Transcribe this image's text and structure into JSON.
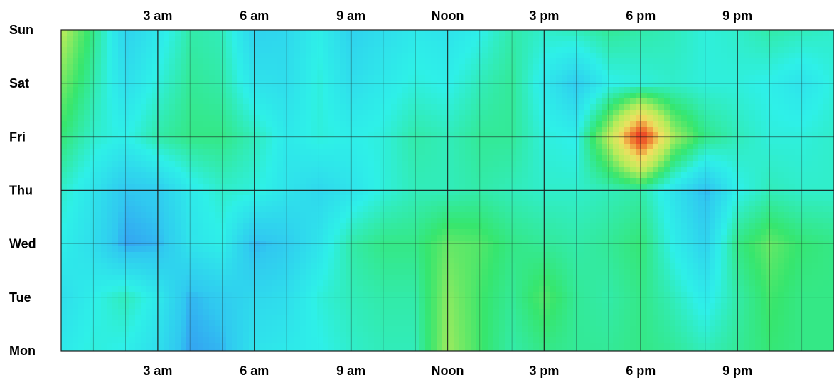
{
  "chart_data": {
    "type": "heatmap",
    "title": "",
    "xlabel": "",
    "ylabel": "",
    "x_tick_labels": [
      "3 am",
      "6 am",
      "9 am",
      "Noon",
      "3 pm",
      "6 pm",
      "9 pm"
    ],
    "x_tick_hours": [
      3,
      6,
      9,
      12,
      15,
      18,
      21
    ],
    "x_range_hours": [
      0,
      24
    ],
    "y_tick_labels": [
      "Sun",
      "Sat",
      "Fri",
      "Thu",
      "Wed",
      "Tue",
      "Mon"
    ],
    "x_axis_labels_position": "top and bottom",
    "grid": true,
    "colorscale": [
      "#3b4ff5",
      "#30c8f0",
      "#2ef0e8",
      "#36e66e",
      "#b8ec5a",
      "#f0e060",
      "#f07a30",
      "#e82a20"
    ],
    "value_scale": "relative 0-1",
    "rows_top_to_bottom": [
      "Sun",
      "Sat",
      "Fri",
      "Thu",
      "Wed",
      "Tue",
      "Mon"
    ],
    "hours": [
      0,
      1,
      2,
      3,
      4,
      5,
      6,
      7,
      8,
      9,
      10,
      11,
      12,
      13,
      14,
      15,
      16,
      17,
      18,
      19,
      20,
      21,
      22,
      23,
      24
    ],
    "values": [
      [
        0.58,
        0.4,
        0.18,
        0.25,
        0.36,
        0.34,
        0.18,
        0.2,
        0.28,
        0.18,
        0.22,
        0.26,
        0.24,
        0.28,
        0.36,
        0.32,
        0.34,
        0.38,
        0.36,
        0.34,
        0.3,
        0.32,
        0.36,
        0.34,
        0.32
      ],
      [
        0.5,
        0.36,
        0.22,
        0.3,
        0.38,
        0.36,
        0.24,
        0.22,
        0.3,
        0.22,
        0.26,
        0.3,
        0.28,
        0.34,
        0.38,
        0.26,
        0.16,
        0.28,
        0.3,
        0.32,
        0.3,
        0.3,
        0.28,
        0.24,
        0.3
      ],
      [
        0.42,
        0.32,
        0.28,
        0.36,
        0.4,
        0.4,
        0.34,
        0.26,
        0.3,
        0.28,
        0.3,
        0.36,
        0.34,
        0.38,
        0.38,
        0.3,
        0.28,
        0.58,
        1.0,
        0.56,
        0.4,
        0.34,
        0.3,
        0.3,
        0.32
      ],
      [
        0.32,
        0.24,
        0.14,
        0.16,
        0.26,
        0.32,
        0.3,
        0.24,
        0.2,
        0.24,
        0.3,
        0.34,
        0.34,
        0.36,
        0.34,
        0.32,
        0.32,
        0.34,
        0.36,
        0.24,
        0.12,
        0.28,
        0.34,
        0.32,
        0.32
      ],
      [
        0.28,
        0.22,
        0.1,
        0.12,
        0.24,
        0.28,
        0.12,
        0.16,
        0.24,
        0.36,
        0.4,
        0.4,
        0.48,
        0.46,
        0.4,
        0.38,
        0.36,
        0.38,
        0.42,
        0.28,
        0.18,
        0.4,
        0.48,
        0.42,
        0.4
      ],
      [
        0.22,
        0.28,
        0.34,
        0.26,
        0.12,
        0.16,
        0.2,
        0.22,
        0.3,
        0.34,
        0.36,
        0.36,
        0.52,
        0.44,
        0.38,
        0.46,
        0.38,
        0.36,
        0.4,
        0.34,
        0.26,
        0.36,
        0.44,
        0.4,
        0.4
      ],
      [
        0.26,
        0.3,
        0.28,
        0.22,
        0.1,
        0.12,
        0.24,
        0.26,
        0.28,
        0.32,
        0.34,
        0.34,
        0.54,
        0.44,
        0.36,
        0.4,
        0.38,
        0.38,
        0.4,
        0.38,
        0.34,
        0.38,
        0.42,
        0.4,
        0.4
      ]
    ]
  }
}
